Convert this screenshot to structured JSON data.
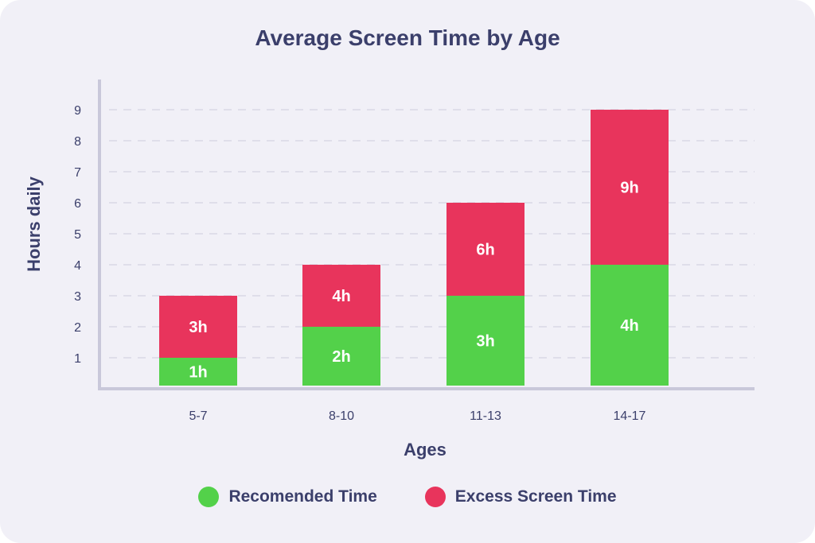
{
  "chart_data": {
    "type": "bar",
    "stacked": true,
    "title": "Average Screen Time by Age",
    "xlabel": "Ages",
    "ylabel": "Hours daily",
    "categories": [
      "5-7",
      "8-10",
      "11-13",
      "14-17"
    ],
    "ylim": [
      0,
      9
    ],
    "yticks": [
      1,
      2,
      3,
      4,
      5,
      6,
      7,
      8,
      9
    ],
    "grid": true,
    "legend_position": "bottom",
    "series": [
      {
        "name": "Recomended Time",
        "color": "#53d14a",
        "values": [
          1,
          2,
          3,
          4
        ],
        "labels": [
          "1h",
          "2h",
          "3h",
          "4h"
        ]
      },
      {
        "name": "Excess Screen Time",
        "color": "#e8345c",
        "values": [
          2,
          2,
          3,
          5
        ],
        "labels": [
          "3h",
          "4h",
          "6h",
          "9h"
        ]
      }
    ]
  }
}
